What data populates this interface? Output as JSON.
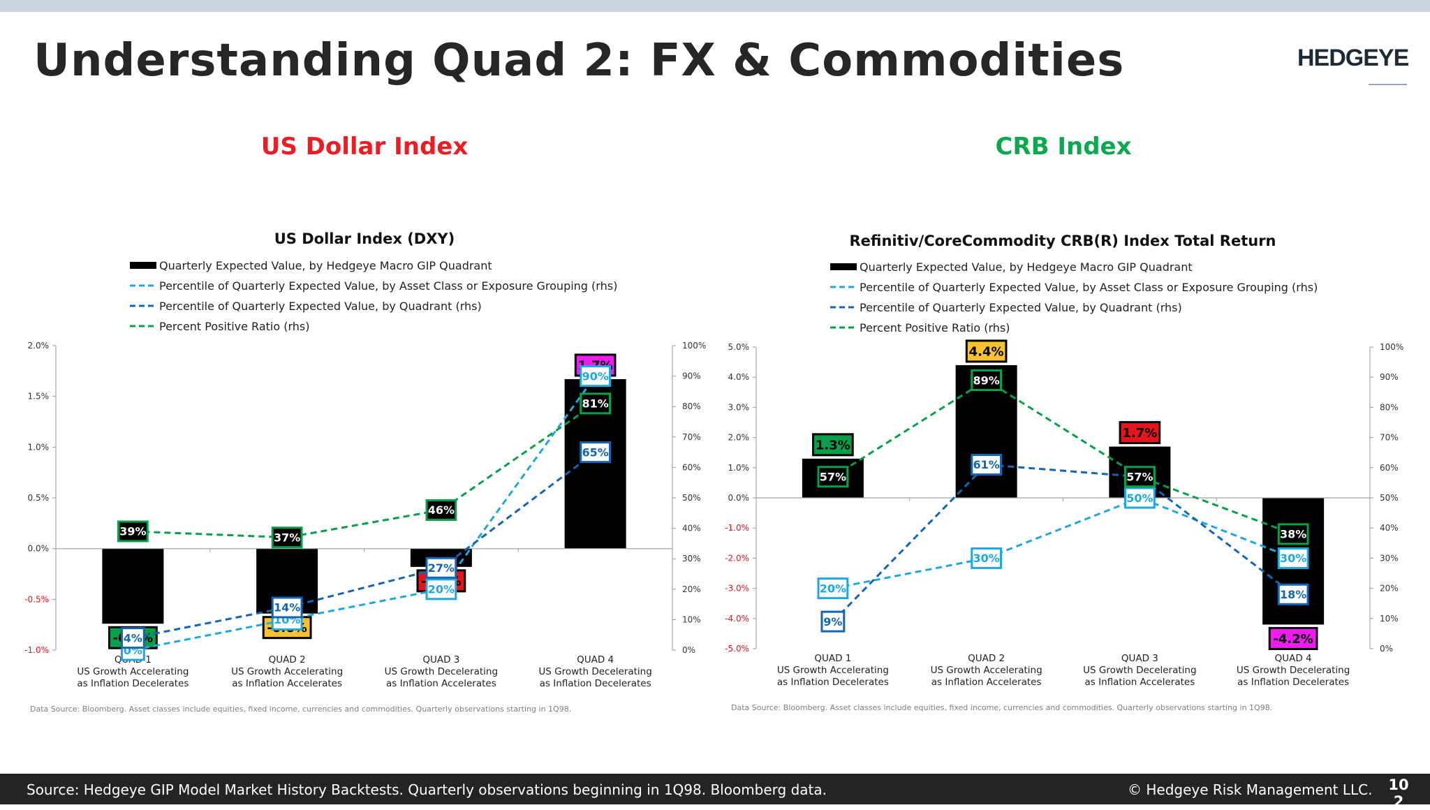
{
  "page": {
    "title": "Understanding Quad 2: FX & Commodities",
    "brand": "HEDGEYE",
    "footer_source": "Source: Hedgeye GIP Model Market History Backtests. Quarterly observations beginning in 1Q98. Bloomberg data.",
    "footer_copyright": "© Hedgeye Risk Management LLC.",
    "page_number": "102"
  },
  "colors": {
    "bar": "#000000",
    "asset_class_line": "#1fa8e0",
    "quadrant_line": "#1565b4",
    "percent_positive_line": "#0a9e4a",
    "us_dollar_title": "#ee1c25",
    "crb_title": "#0aa84f",
    "quad1_label": "#0a9e4a",
    "quad2_label": "#f7c22e",
    "quad3_label": "#e8141d",
    "quad4_label": "#ee1ced"
  },
  "sections": [
    {
      "title": "US Dollar Index",
      "color": "#ee1c25"
    },
    {
      "title": "CRB Index",
      "color": "#0aa84f"
    }
  ],
  "chart_data": [
    {
      "type": "bar",
      "title": "US Dollar Index (DXY)",
      "categories": [
        [
          "QUAD 1",
          "US Growth Accelerating",
          "as Inflation Decelerates"
        ],
        [
          "QUAD 2",
          "US Growth Accelerating",
          "as Inflation Accelerates"
        ],
        [
          "QUAD 3",
          "US Growth Decelerating",
          "as Inflation Accelerates"
        ],
        [
          "QUAD 4",
          "US Growth Decelerating",
          "as Inflation Decelerates"
        ]
      ],
      "legend": [
        "Quarterly Expected Value, by Hedgeye Macro GIP Quadrant",
        "Percentile of Quarterly Expected Value, by Asset Class or Exposure Grouping (rhs)",
        "Percentile of Quarterly Expected Value, by Quadrant (rhs)",
        "Percent Positive Ratio (rhs)"
      ],
      "ylim": [
        -1.0,
        2.0
      ],
      "y_ticks": [
        -1.0,
        -0.5,
        0.0,
        0.5,
        1.0,
        1.5,
        2.0
      ],
      "y_tick_labels": [
        "-1.0%",
        "-0.5%",
        "0.0%",
        "0.5%",
        "1.0%",
        "1.5%",
        "2.0%"
      ],
      "y2lim": [
        0,
        100
      ],
      "y2_ticks": [
        0,
        10,
        20,
        30,
        40,
        50,
        60,
        70,
        80,
        90,
        100
      ],
      "y2_tick_labels": [
        "0%",
        "10%",
        "20%",
        "30%",
        "40%",
        "50%",
        "60%",
        "70%",
        "80%",
        "90%",
        "100%"
      ],
      "bar_values": [
        -0.74,
        -0.64,
        -0.18,
        1.67
      ],
      "bar_labels": [
        "-0.7%",
        "-0.6%",
        "-0.2%",
        "1.7%"
      ],
      "series": [
        {
          "name": "Percentile of Quarterly Expected Value, by Asset Class or Exposure Grouping (rhs)",
          "values": [
            0,
            10,
            20,
            90
          ],
          "labels": [
            "0%",
            "10%",
            "20%",
            "90%"
          ]
        },
        {
          "name": "Percentile of Quarterly Expected Value, by Quadrant (rhs)",
          "values": [
            4,
            14,
            27,
            65
          ],
          "labels": [
            "4%",
            "14%",
            "27%",
            "65%"
          ]
        },
        {
          "name": "Percent Positive Ratio (rhs)",
          "values": [
            39,
            37,
            46,
            81
          ],
          "labels": [
            "39%",
            "37%",
            "46%",
            "81%"
          ]
        }
      ],
      "footnote": "Data Source: Bloomberg. Asset classes include equities, fixed income, currencies and commodities. Quarterly observations starting in 1Q98."
    },
    {
      "type": "bar",
      "title": "Refinitiv/CoreCommodity CRB(R) Index Total Return",
      "categories": [
        [
          "QUAD 1",
          "US Growth Accelerating",
          "as Inflation Decelerates"
        ],
        [
          "QUAD 2",
          "US Growth Accelerating",
          "as Inflation Accelerates"
        ],
        [
          "QUAD 3",
          "US Growth Decelerating",
          "as Inflation Accelerates"
        ],
        [
          "QUAD 4",
          "US Growth Decelerating",
          "as Inflation Decelerates"
        ]
      ],
      "legend": [
        "Quarterly Expected Value, by Hedgeye Macro GIP Quadrant",
        "Percentile of Quarterly Expected Value, by Asset Class or Exposure Grouping (rhs)",
        "Percentile of Quarterly Expected Value, by Quadrant (rhs)",
        "Percent Positive Ratio (rhs)"
      ],
      "ylim": [
        -5.0,
        5.0
      ],
      "y_ticks": [
        -5.0,
        -4.0,
        -3.0,
        -2.0,
        -1.0,
        0.0,
        1.0,
        2.0,
        3.0,
        4.0,
        5.0
      ],
      "y_tick_labels": [
        "-5.0%",
        "-4.0%",
        "-3.0%",
        "-2.0%",
        "-1.0%",
        "0.0%",
        "1.0%",
        "2.0%",
        "3.0%",
        "4.0%",
        "5.0%"
      ],
      "y2lim": [
        0,
        100
      ],
      "y2_ticks": [
        0,
        10,
        20,
        30,
        40,
        50,
        60,
        70,
        80,
        90,
        100
      ],
      "y2_tick_labels": [
        "0%",
        "10%",
        "20%",
        "30%",
        "40%",
        "50%",
        "60%",
        "70%",
        "80%",
        "90%",
        "100%"
      ],
      "bar_values": [
        1.3,
        4.4,
        1.7,
        -4.2
      ],
      "bar_labels": [
        "1.3%",
        "4.4%",
        "1.7%",
        "-4.2%"
      ],
      "series": [
        {
          "name": "Percentile of Quarterly Expected Value, by Asset Class or Exposure Grouping (rhs)",
          "values": [
            20,
            30,
            50,
            30
          ],
          "labels": [
            "20%",
            "30%",
            "50%",
            "30%"
          ]
        },
        {
          "name": "Percentile of Quarterly Expected Value, by Quadrant (rhs)",
          "values": [
            9,
            61,
            57,
            18
          ],
          "labels": [
            "9%",
            "61%",
            "57%",
            "18%"
          ]
        },
        {
          "name": "Percent Positive Ratio (rhs)",
          "values": [
            57,
            89,
            57,
            38
          ],
          "labels": [
            "57%",
            "89%",
            "57%",
            "38%"
          ]
        }
      ],
      "footnote": "Data Source: Bloomberg. Asset classes include equities, fixed income, currencies and commodities. Quarterly observations starting in 1Q98."
    }
  ]
}
